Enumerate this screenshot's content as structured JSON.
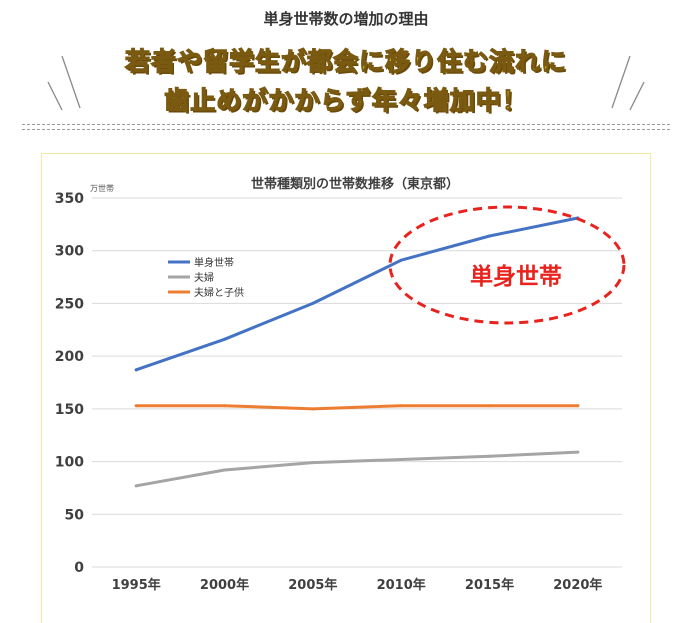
{
  "header": {
    "subtitle": "単身世帯数の増加の理由",
    "headline_line1": "若者や留学生が都会に移り住む流れに",
    "headline_line2": "歯止めがかからず年々増加中！"
  },
  "colors": {
    "headline_fill": "#f6e11a",
    "single": "#4472c4",
    "couple": "#a5a5a5",
    "couple_children": "#ed7d31",
    "callout": "#e8231e",
    "frame": "#f2e9a0"
  },
  "chart_data": {
    "type": "line",
    "title": "世帯種類別の世帯数推移（東京都）",
    "unit_label": "万世帯",
    "xlabel": "",
    "ylabel": "",
    "categories": [
      "1995年",
      "2000年",
      "2005年",
      "2010年",
      "2015年",
      "2020年"
    ],
    "ylim": [
      0,
      350
    ],
    "yticks": [
      0,
      50,
      100,
      150,
      200,
      250,
      300,
      350
    ],
    "grid": true,
    "legend_position": "upper-left",
    "series": [
      {
        "name": "単身世帯",
        "values": [
          187,
          216,
          250,
          291,
          314,
          331
        ]
      },
      {
        "name": "夫婦",
        "values": [
          77,
          92,
          99,
          102,
          105,
          109
        ]
      },
      {
        "name": "夫婦と子供",
        "values": [
          153,
          153,
          150,
          153,
          153,
          153
        ]
      }
    ],
    "annotation": {
      "text": "単身世帯",
      "shape": "dashed-ellipse"
    }
  }
}
